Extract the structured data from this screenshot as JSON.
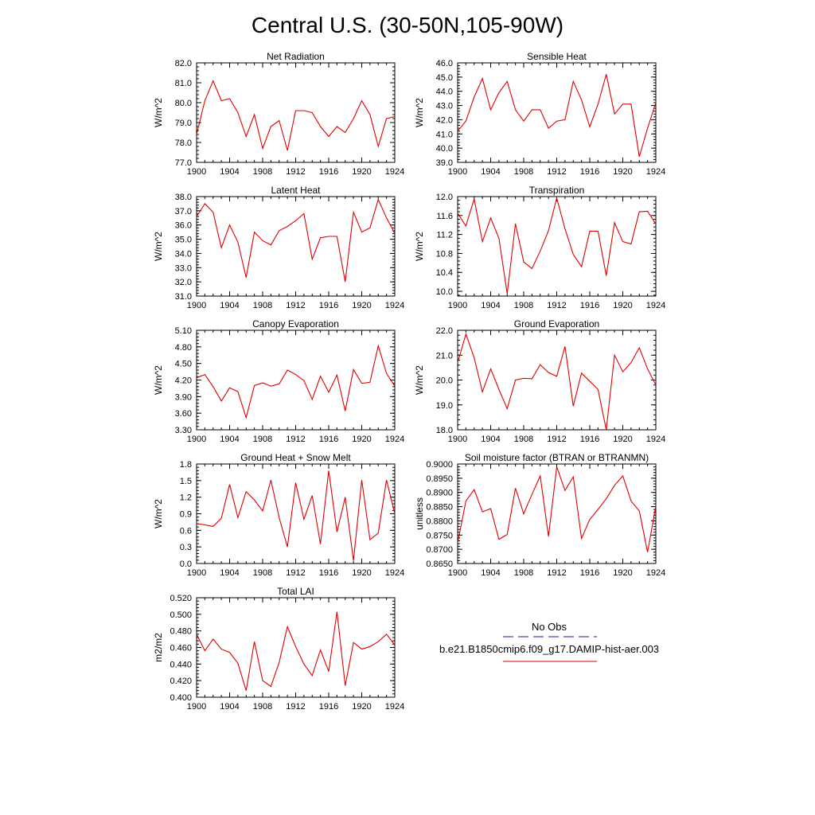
{
  "figure": {
    "title": "Central U.S. (30-50N,105-90W)",
    "line_color": "#e00000",
    "obs_color": "#1a1a9a"
  },
  "legend": {
    "obs_label": "No Obs",
    "model_label": "b.e21.B1850cmip6.f09_g17.DAMIP-hist-aer.003"
  },
  "chart_data": [
    {
      "type": "line",
      "title": "Net Radiation",
      "ylabel": "W/m^2",
      "xlim": [
        1900,
        1924
      ],
      "xticks": [
        1900,
        1904,
        1908,
        1912,
        1916,
        1920,
        1924
      ],
      "ylim": [
        77.0,
        82.0
      ],
      "yticks": [
        "77.0",
        "78.0",
        "79.0",
        "80.0",
        "81.0",
        "82.0"
      ],
      "x": [
        1900,
        1901,
        1902,
        1903,
        1904,
        1905,
        1906,
        1907,
        1908,
        1909,
        1910,
        1911,
        1912,
        1913,
        1914,
        1915,
        1916,
        1917,
        1918,
        1919,
        1920,
        1921,
        1922,
        1923,
        1924
      ],
      "series": [
        {
          "values": [
            78.4,
            80.1,
            81.1,
            80.1,
            80.2,
            79.5,
            78.3,
            79.4,
            77.7,
            78.8,
            79.1,
            77.6,
            79.6,
            79.6,
            79.5,
            78.8,
            78.3,
            78.8,
            78.5,
            79.2,
            80.1,
            79.4,
            77.8,
            79.2,
            79.3
          ]
        }
      ]
    },
    {
      "type": "line",
      "title": "Sensible Heat",
      "ylabel": "W/m^2",
      "xlim": [
        1900,
        1924
      ],
      "xticks": [
        1900,
        1904,
        1908,
        1912,
        1916,
        1920,
        1924
      ],
      "ylim": [
        39.0,
        46.0
      ],
      "yticks": [
        "39.0",
        "40.0",
        "41.0",
        "42.0",
        "43.0",
        "44.0",
        "45.0",
        "46.0"
      ],
      "x": [
        1900,
        1901,
        1902,
        1903,
        1904,
        1905,
        1906,
        1907,
        1908,
        1909,
        1910,
        1911,
        1912,
        1913,
        1914,
        1915,
        1916,
        1917,
        1918,
        1919,
        1920,
        1921,
        1922,
        1923,
        1924
      ],
      "series": [
        {
          "values": [
            41.2,
            41.9,
            43.6,
            44.9,
            42.7,
            43.9,
            44.7,
            42.7,
            41.9,
            42.7,
            42.7,
            41.4,
            41.9,
            42.0,
            44.7,
            43.4,
            41.5,
            43.1,
            45.2,
            42.4,
            43.1,
            43.1,
            39.4,
            41.4,
            43.2
          ]
        }
      ]
    },
    {
      "type": "line",
      "title": "Latent Heat",
      "ylabel": "W/m^2",
      "xlim": [
        1900,
        1924
      ],
      "xticks": [
        1900,
        1904,
        1908,
        1912,
        1916,
        1920,
        1924
      ],
      "ylim": [
        31.0,
        38.0
      ],
      "yticks": [
        "31.0",
        "32.0",
        "33.0",
        "34.0",
        "35.0",
        "36.0",
        "37.0",
        "38.0"
      ],
      "x": [
        1900,
        1901,
        1902,
        1903,
        1904,
        1905,
        1906,
        1907,
        1908,
        1909,
        1910,
        1911,
        1912,
        1913,
        1914,
        1915,
        1916,
        1917,
        1918,
        1919,
        1920,
        1921,
        1922,
        1923,
        1924
      ],
      "series": [
        {
          "values": [
            36.6,
            37.5,
            36.9,
            34.4,
            36.0,
            34.8,
            32.3,
            35.5,
            34.9,
            34.6,
            35.6,
            35.9,
            36.3,
            36.8,
            33.6,
            35.1,
            35.2,
            35.2,
            32.0,
            36.9,
            35.5,
            35.8,
            37.8,
            36.5,
            35.4
          ]
        }
      ]
    },
    {
      "type": "line",
      "title": "Transpiration",
      "ylabel": "W/m^2",
      "xlim": [
        1900,
        1924
      ],
      "xticks": [
        1900,
        1904,
        1908,
        1912,
        1916,
        1920,
        1924
      ],
      "ylim": [
        9.9,
        12.0
      ],
      "yticks": [
        "10.0",
        "10.4",
        "10.8",
        "11.2",
        "11.6",
        "12.0"
      ],
      "x": [
        1900,
        1901,
        1902,
        1903,
        1904,
        1905,
        1906,
        1907,
        1908,
        1909,
        1910,
        1911,
        1912,
        1913,
        1914,
        1915,
        1916,
        1917,
        1918,
        1919,
        1920,
        1921,
        1922,
        1923,
        1924
      ],
      "series": [
        {
          "values": [
            11.65,
            11.38,
            11.95,
            11.05,
            11.55,
            11.12,
            9.95,
            11.43,
            10.62,
            10.48,
            10.85,
            11.28,
            11.97,
            11.32,
            10.78,
            10.52,
            11.27,
            11.27,
            10.33,
            11.45,
            11.05,
            11.0,
            11.68,
            11.69,
            11.42
          ]
        }
      ]
    },
    {
      "type": "line",
      "title": "Canopy Evaporation",
      "ylabel": "W/m^2",
      "xlim": [
        1900,
        1924
      ],
      "xticks": [
        1900,
        1904,
        1908,
        1912,
        1916,
        1920,
        1924
      ],
      "ylim": [
        3.3,
        5.1
      ],
      "yticks": [
        "3.30",
        "3.60",
        "3.90",
        "4.20",
        "4.50",
        "4.80",
        "5.10"
      ],
      "x": [
        1900,
        1901,
        1902,
        1903,
        1904,
        1905,
        1906,
        1907,
        1908,
        1909,
        1910,
        1911,
        1912,
        1913,
        1914,
        1915,
        1916,
        1917,
        1918,
        1919,
        1920,
        1921,
        1922,
        1923,
        1924
      ],
      "series": [
        {
          "values": [
            4.24,
            4.3,
            4.08,
            3.82,
            4.06,
            3.99,
            3.52,
            4.1,
            4.15,
            4.09,
            4.13,
            4.38,
            4.3,
            4.19,
            3.85,
            4.27,
            3.98,
            4.29,
            3.64,
            4.39,
            4.14,
            4.16,
            4.82,
            4.32,
            4.09
          ]
        }
      ]
    },
    {
      "type": "line",
      "title": "Ground Evaporation",
      "ylabel": "W/m^2",
      "xlim": [
        1900,
        1924
      ],
      "xticks": [
        1900,
        1904,
        1908,
        1912,
        1916,
        1920,
        1924
      ],
      "ylim": [
        18.0,
        22.0
      ],
      "yticks": [
        "18.0",
        "19.0",
        "20.0",
        "21.0",
        "22.0"
      ],
      "x": [
        1900,
        1901,
        1902,
        1903,
        1904,
        1905,
        1906,
        1907,
        1908,
        1909,
        1910,
        1911,
        1912,
        1913,
        1914,
        1915,
        1916,
        1917,
        1918,
        1919,
        1920,
        1921,
        1922,
        1923,
        1924
      ],
      "series": [
        {
          "values": [
            20.7,
            21.85,
            20.9,
            19.52,
            20.45,
            19.62,
            18.85,
            20.0,
            20.07,
            20.05,
            20.62,
            20.3,
            20.15,
            21.35,
            18.95,
            20.28,
            19.95,
            19.62,
            18.0,
            21.0,
            20.33,
            20.7,
            21.3,
            20.45,
            19.8
          ]
        }
      ]
    },
    {
      "type": "line",
      "title": "Ground Heat + Snow Melt",
      "ylabel": "W/m^2",
      "xlim": [
        1900,
        1924
      ],
      "xticks": [
        1900,
        1904,
        1908,
        1912,
        1916,
        1920,
        1924
      ],
      "ylim": [
        0.0,
        1.8
      ],
      "yticks": [
        "0.0",
        "0.3",
        "0.6",
        "0.9",
        "1.2",
        "1.5",
        "1.8"
      ],
      "x": [
        1900,
        1901,
        1902,
        1903,
        1904,
        1905,
        1906,
        1907,
        1908,
        1909,
        1910,
        1911,
        1912,
        1913,
        1914,
        1915,
        1916,
        1917,
        1918,
        1919,
        1920,
        1921,
        1922,
        1923,
        1924
      ],
      "series": [
        {
          "values": [
            0.72,
            0.7,
            0.67,
            0.82,
            1.43,
            0.83,
            1.3,
            1.15,
            0.95,
            1.51,
            0.83,
            0.3,
            1.46,
            0.8,
            1.23,
            0.35,
            1.68,
            0.57,
            1.2,
            0.05,
            1.51,
            0.43,
            0.55,
            1.51,
            0.9
          ]
        }
      ]
    },
    {
      "type": "line",
      "title": "Soil moisture factor (BTRAN or BTRANMN)",
      "ylabel": "unitless",
      "xlim": [
        1900,
        1924
      ],
      "xticks": [
        1900,
        1904,
        1908,
        1912,
        1916,
        1920,
        1924
      ],
      "ylim": [
        0.865,
        0.9
      ],
      "yticks": [
        "0.8650",
        "0.8700",
        "0.8750",
        "0.8800",
        "0.8850",
        "0.8900",
        "0.8950",
        "0.9000"
      ],
      "x": [
        1900,
        1901,
        1902,
        1903,
        1904,
        1905,
        1906,
        1907,
        1908,
        1909,
        1910,
        1911,
        1912,
        1913,
        1914,
        1915,
        1916,
        1917,
        1918,
        1919,
        1920,
        1921,
        1922,
        1923,
        1924
      ],
      "series": [
        {
          "values": [
            0.8722,
            0.887,
            0.891,
            0.8832,
            0.8843,
            0.8735,
            0.8752,
            0.8915,
            0.8825,
            0.8893,
            0.8958,
            0.8745,
            0.899,
            0.8907,
            0.8955,
            0.8738,
            0.8805,
            0.884,
            0.8878,
            0.8925,
            0.8958,
            0.887,
            0.8835,
            0.869,
            0.8852
          ]
        }
      ]
    },
    {
      "type": "line",
      "title": "Total LAI",
      "ylabel": "m2/m2",
      "xlim": [
        1900,
        1924
      ],
      "xticks": [
        1900,
        1904,
        1908,
        1912,
        1916,
        1920,
        1924
      ],
      "ylim": [
        0.4,
        0.52
      ],
      "yticks": [
        "0.400",
        "0.420",
        "0.440",
        "0.460",
        "0.480",
        "0.500",
        "0.520"
      ],
      "x": [
        1900,
        1901,
        1902,
        1903,
        1904,
        1905,
        1906,
        1907,
        1908,
        1909,
        1910,
        1911,
        1912,
        1913,
        1914,
        1915,
        1916,
        1917,
        1918,
        1919,
        1920,
        1921,
        1922,
        1923,
        1924
      ],
      "series": [
        {
          "values": [
            0.476,
            0.456,
            0.47,
            0.458,
            0.454,
            0.441,
            0.408,
            0.467,
            0.42,
            0.413,
            0.442,
            0.485,
            0.461,
            0.44,
            0.426,
            0.457,
            0.431,
            0.503,
            0.414,
            0.466,
            0.458,
            0.461,
            0.467,
            0.476,
            0.463
          ]
        }
      ]
    }
  ]
}
